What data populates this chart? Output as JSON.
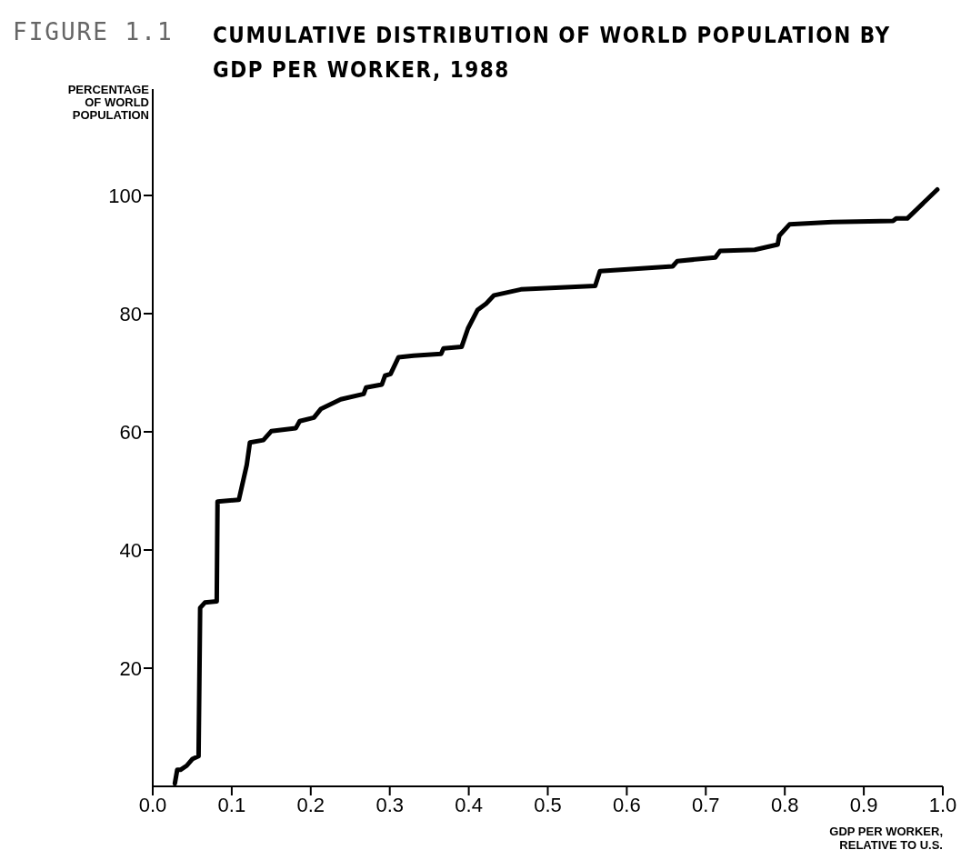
{
  "chart_data": {
    "type": "line",
    "title": "CUMULATIVE DISTRIBUTION OF WORLD POPULATION BY GDP PER WORKER, 1988",
    "annotations": [
      "FIGURE 1.1"
    ],
    "xlabel": "GDP PER WORKER,\nRELATIVE TO U.S.",
    "ylabel": "PERCENTAGE\nOF WORLD\nPOPULATION",
    "x": [
      0.028,
      0.031,
      0.035,
      0.043,
      0.05,
      0.058,
      0.06,
      0.066,
      0.081,
      0.082,
      0.109,
      0.119,
      0.123,
      0.14,
      0.15,
      0.181,
      0.186,
      0.204,
      0.213,
      0.238,
      0.267,
      0.27,
      0.29,
      0.294,
      0.301,
      0.311,
      0.33,
      0.365,
      0.368,
      0.391,
      0.399,
      0.411,
      0.422,
      0.432,
      0.466,
      0.56,
      0.566,
      0.658,
      0.664,
      0.712,
      0.718,
      0.762,
      0.791,
      0.793,
      0.806,
      0.86,
      0.937,
      0.941,
      0.955,
      0.993
    ],
    "series": [
      {
        "color": "#000000",
        "values": [
          0.5,
          2.8,
          2.8,
          3.5,
          4.6,
          5.1,
          30.2,
          31.1,
          31.3,
          48.2,
          48.5,
          54.4,
          58.2,
          58.6,
          60.1,
          60.6,
          61.8,
          62.4,
          63.9,
          65.5,
          66.4,
          67.5,
          68.0,
          69.5,
          69.8,
          72.6,
          72.9,
          73.2,
          74.1,
          74.4,
          77.5,
          80.6,
          81.7,
          83.1,
          84.1,
          84.7,
          87.2,
          88.0,
          88.9,
          89.5,
          90.6,
          90.8,
          91.7,
          93.2,
          95.1,
          95.5,
          95.7,
          96.1,
          96.1,
          101
        ]
      }
    ],
    "xlim": [
      0,
      1.0
    ],
    "xticks": [
      {
        "value": 0,
        "label": "0.0"
      },
      0.1,
      0.2,
      0.3,
      0.4,
      0.5,
      0.6,
      0.7,
      0.8,
      0.9,
      {
        "value": 1,
        "label": "1.0"
      }
    ],
    "ylim": [
      0,
      118
    ],
    "yticks": [
      20,
      40,
      60,
      80,
      100
    ],
    "grid": false,
    "legend": false,
    "marker": "none",
    "line_style": "solid"
  }
}
